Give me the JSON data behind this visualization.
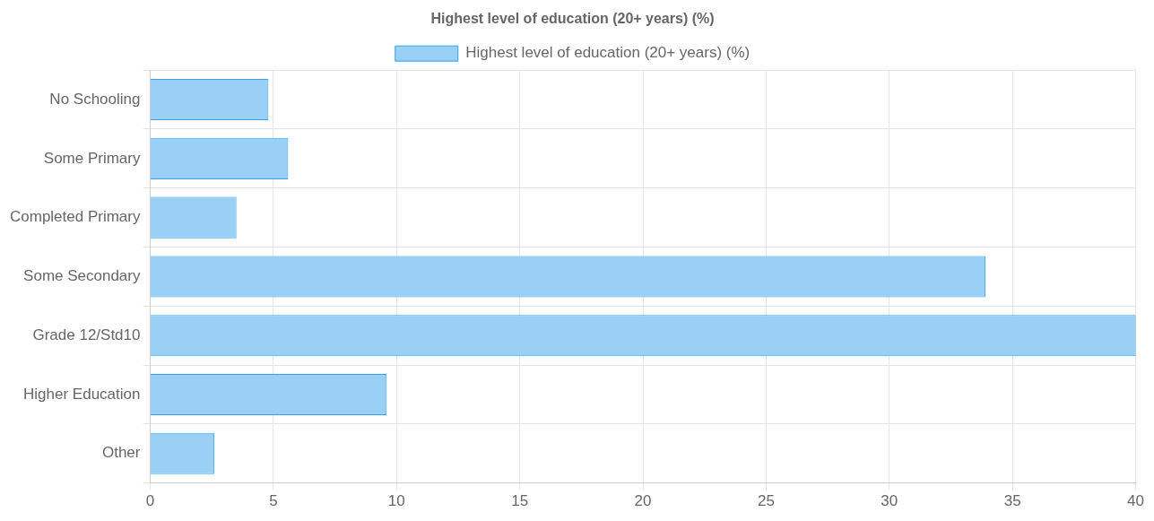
{
  "chart_data": {
    "type": "bar",
    "orientation": "horizontal",
    "title": "Highest level of education (20+ years) (%)",
    "categories": [
      "No Schooling",
      "Some Primary",
      "Completed Primary",
      "Some Secondary",
      "Grade 12/Std10",
      "Higher Education",
      "Other"
    ],
    "series": [
      {
        "name": "Highest level of education (20+ years) (%)",
        "color": "#9ad0f5",
        "values": [
          4.8,
          5.6,
          3.5,
          33.9,
          40.0,
          9.6,
          2.6
        ]
      }
    ],
    "xlim": [
      0,
      40
    ],
    "xticks": [
      0,
      5,
      10,
      15,
      20,
      25,
      30,
      35,
      40
    ],
    "grid": true,
    "legend": "top"
  }
}
